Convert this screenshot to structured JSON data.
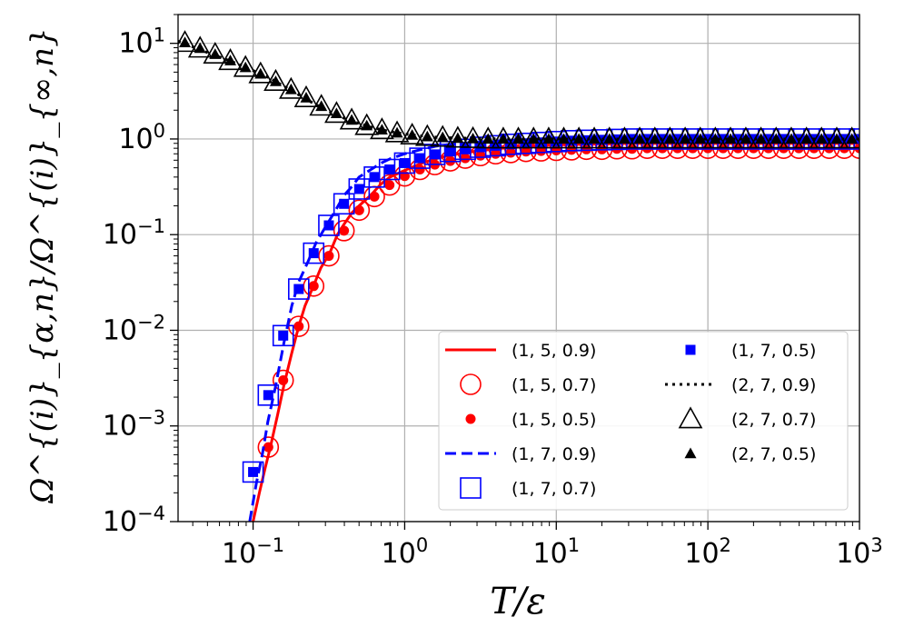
{
  "chart_data": {
    "type": "line",
    "xscale": "log",
    "yscale": "log",
    "xlim": [
      0.032,
      1000
    ],
    "ylim": [
      0.0001,
      20
    ],
    "xlabel": "T/ε",
    "ylabel": "Ω^{(i)}_{α,n}/Ω^{(i)}_{∞,n}",
    "grid": true,
    "legend_location": "lower-right",
    "x_ticks": [
      {
        "value": 0.1,
        "mant": "10",
        "exp": "−1"
      },
      {
        "value": 1,
        "mant": "10",
        "exp": "0"
      },
      {
        "value": 10,
        "mant": "10",
        "exp": "1"
      },
      {
        "value": 100,
        "mant": "10",
        "exp": "2"
      },
      {
        "value": 1000,
        "mant": "10",
        "exp": "3"
      }
    ],
    "y_ticks": [
      {
        "value": 0.0001,
        "mant": "10",
        "exp": "−4"
      },
      {
        "value": 0.001,
        "mant": "10",
        "exp": "−3"
      },
      {
        "value": 0.01,
        "mant": "10",
        "exp": "−2"
      },
      {
        "value": 0.1,
        "mant": "10",
        "exp": "−1"
      },
      {
        "value": 1,
        "mant": "10",
        "exp": "0"
      },
      {
        "value": 10,
        "mant": "10",
        "exp": "1"
      }
    ],
    "series": [
      {
        "name": "(1, 5, 0.9)",
        "style": "line",
        "dash": "solid",
        "color": "#ff0000",
        "x": [
          0.1,
          0.11,
          0.12,
          0.13,
          0.145,
          0.16,
          0.18,
          0.2,
          0.22,
          0.25,
          0.28,
          0.32,
          0.36,
          0.4,
          0.45,
          0.5,
          0.6,
          0.7,
          0.8,
          1.0,
          1.3,
          1.6,
          2,
          3,
          5,
          10,
          30,
          100,
          1000
        ],
        "y": [
          0.0001,
          0.0002,
          0.00036,
          0.0006,
          0.0013,
          0.0027,
          0.0058,
          0.011,
          0.018,
          0.029,
          0.045,
          0.064,
          0.1,
          0.13,
          0.17,
          0.2,
          0.26,
          0.34,
          0.4,
          0.47,
          0.56,
          0.62,
          0.68,
          0.75,
          0.82,
          0.87,
          0.9,
          0.9,
          0.9
        ]
      },
      {
        "name": "(1, 5, 0.7)",
        "style": "marker",
        "marker": "circle-open",
        "color": "#ff0000",
        "x": [
          0.126,
          0.158,
          0.2,
          0.251,
          0.316,
          0.398,
          0.501,
          0.631,
          0.794,
          1.0,
          1.26,
          1.58,
          2.0,
          2.51,
          3.16,
          3.98,
          5.01,
          6.31,
          7.94,
          10,
          12.6,
          15.8,
          20,
          25.1,
          31.6,
          39.8,
          50.1,
          63.1,
          79.4,
          100,
          126,
          158,
          200,
          251,
          316,
          398,
          501,
          631,
          794,
          1000
        ],
        "y": [
          0.0006,
          0.003,
          0.011,
          0.029,
          0.06,
          0.11,
          0.18,
          0.25,
          0.33,
          0.41,
          0.48,
          0.54,
          0.59,
          0.63,
          0.67,
          0.7,
          0.72,
          0.74,
          0.75,
          0.76,
          0.77,
          0.78,
          0.78,
          0.79,
          0.79,
          0.8,
          0.8,
          0.8,
          0.8,
          0.8,
          0.8,
          0.8,
          0.8,
          0.8,
          0.8,
          0.8,
          0.8,
          0.8,
          0.8,
          0.8
        ]
      },
      {
        "name": "(1, 5, 0.5)",
        "style": "marker",
        "marker": "circle-filled",
        "color": "#ff0000",
        "x": [
          0.126,
          0.158,
          0.2,
          0.251,
          0.316,
          0.398,
          0.501,
          0.631,
          0.794,
          1.0,
          1.26,
          1.58,
          2.0,
          2.51,
          3.16,
          3.98,
          5.01,
          6.31,
          7.94,
          10,
          12.6,
          15.8,
          20,
          25.1,
          31.6,
          39.8,
          50.1,
          63.1,
          79.4,
          100,
          126,
          158,
          200,
          251,
          316,
          398,
          501,
          631,
          794,
          1000
        ],
        "y": [
          0.0006,
          0.003,
          0.011,
          0.029,
          0.06,
          0.11,
          0.18,
          0.25,
          0.33,
          0.41,
          0.48,
          0.54,
          0.59,
          0.63,
          0.67,
          0.7,
          0.72,
          0.74,
          0.75,
          0.76,
          0.77,
          0.78,
          0.78,
          0.79,
          0.79,
          0.8,
          0.8,
          0.8,
          0.8,
          0.8,
          0.8,
          0.8,
          0.8,
          0.8,
          0.8,
          0.8,
          0.8,
          0.8,
          0.8,
          0.8
        ]
      },
      {
        "name": "(1, 7, 0.9)",
        "style": "line",
        "dash": "dashed",
        "color": "#0000ff",
        "x": [
          0.095,
          0.105,
          0.115,
          0.125,
          0.14,
          0.16,
          0.18,
          0.2,
          0.23,
          0.26,
          0.3,
          0.35,
          0.4,
          0.45,
          0.5,
          0.6,
          0.7,
          0.8,
          1.0,
          1.3,
          1.6,
          2,
          3,
          5,
          10,
          30,
          100,
          1000
        ],
        "y": [
          0.0001,
          0.00025,
          0.0005,
          0.0011,
          0.0025,
          0.0075,
          0.018,
          0.032,
          0.052,
          0.082,
          0.12,
          0.18,
          0.26,
          0.32,
          0.4,
          0.48,
          0.56,
          0.62,
          0.7,
          0.78,
          0.84,
          0.88,
          0.93,
          0.97,
          1.0,
          1.0,
          1.0,
          1.0
        ]
      },
      {
        "name": "(1, 7, 0.7)",
        "style": "marker",
        "marker": "square-open",
        "color": "#0000ff",
        "x": [
          0.1,
          0.126,
          0.158,
          0.2,
          0.251,
          0.316,
          0.398,
          0.501,
          0.631,
          0.794,
          1.0,
          1.26,
          1.58,
          2.0,
          2.51,
          3.16,
          3.98,
          5.01,
          6.31,
          7.94,
          10,
          12.6,
          15.8,
          20,
          25.1,
          31.6,
          39.8,
          50.1,
          63.1,
          79.4,
          100,
          126,
          158,
          200,
          251,
          316,
          398,
          501,
          631,
          794,
          1000
        ],
        "y": [
          0.00033,
          0.0021,
          0.0088,
          0.027,
          0.064,
          0.125,
          0.21,
          0.3,
          0.4,
          0.48,
          0.56,
          0.63,
          0.69,
          0.74,
          0.78,
          0.82,
          0.85,
          0.88,
          0.9,
          0.92,
          0.94,
          0.96,
          0.97,
          0.98,
          0.99,
          1.0,
          1.0,
          1.0,
          1.0,
          1.0,
          1.0,
          1.0,
          1.0,
          1.0,
          1.0,
          1.0,
          1.0,
          1.0,
          1.0,
          1.0,
          1.0
        ]
      },
      {
        "name": "(1, 7, 0.5)",
        "style": "marker",
        "marker": "square-filled",
        "color": "#0000ff",
        "x": [
          0.1,
          0.126,
          0.158,
          0.2,
          0.251,
          0.316,
          0.398,
          0.501,
          0.631,
          0.794,
          1.0,
          1.26,
          1.58,
          2.0,
          2.51,
          3.16,
          3.98,
          5.01,
          6.31,
          7.94,
          10,
          12.6,
          15.8,
          20,
          25.1,
          31.6,
          39.8,
          50.1,
          63.1,
          79.4,
          100,
          126,
          158,
          200,
          251,
          316,
          398,
          501,
          631,
          794,
          1000
        ],
        "y": [
          0.00033,
          0.0021,
          0.0088,
          0.027,
          0.064,
          0.125,
          0.21,
          0.3,
          0.4,
          0.48,
          0.56,
          0.63,
          0.69,
          0.74,
          0.78,
          0.82,
          0.85,
          0.88,
          0.9,
          0.92,
          0.94,
          0.96,
          0.97,
          0.98,
          0.99,
          1.0,
          1.0,
          1.0,
          1.0,
          1.0,
          1.0,
          1.0,
          1.0,
          1.0,
          1.0,
          1.0,
          1.0,
          1.0,
          1.0,
          1.0,
          1.0
        ]
      },
      {
        "name": "(2, 7, 0.9)",
        "style": "line",
        "dash": "dotted",
        "color": "#000000",
        "x": [
          0.032,
          0.04,
          0.05,
          0.063,
          0.079,
          0.1,
          0.126,
          0.158,
          0.2,
          0.251,
          0.316,
          0.398,
          0.501,
          0.631,
          0.794,
          1.0,
          1.26,
          1.58,
          2.0,
          2.51,
          3.16,
          5.01,
          10,
          100,
          1000
        ],
        "y": [
          10.5,
          9.2,
          8.0,
          7.0,
          6.1,
          5.2,
          4.4,
          3.6,
          2.9,
          2.35,
          1.95,
          1.65,
          1.45,
          1.3,
          1.2,
          1.13,
          1.08,
          1.05,
          1.03,
          1.02,
          1.01,
          1.0,
          1.0,
          1.0,
          1.0
        ]
      },
      {
        "name": "(2, 7, 0.7)",
        "style": "marker",
        "marker": "triangle-open",
        "color": "#000000",
        "x": [
          0.0355,
          0.0447,
          0.0562,
          0.0708,
          0.0891,
          0.112,
          0.141,
          0.178,
          0.224,
          0.282,
          0.355,
          0.447,
          0.562,
          0.708,
          0.891,
          1.12,
          1.41,
          1.78,
          2.24,
          2.82,
          3.55,
          4.47,
          5.62,
          7.08,
          8.91,
          11.2,
          14.1,
          17.8,
          22.4,
          28.2,
          35.5,
          44.7,
          56.2,
          70.8,
          89.1,
          112,
          141,
          178,
          224,
          282,
          355,
          447,
          562,
          708,
          891
        ],
        "y": [
          10.2,
          8.9,
          7.7,
          6.6,
          5.6,
          4.8,
          4.0,
          3.3,
          2.7,
          2.2,
          1.85,
          1.58,
          1.38,
          1.25,
          1.16,
          1.1,
          1.06,
          1.04,
          1.02,
          1.01,
          1.0,
          1.0,
          1.0,
          1.0,
          1.0,
          1.0,
          1.0,
          1.0,
          1.0,
          1.0,
          1.0,
          1.0,
          1.0,
          1.0,
          1.0,
          1.0,
          1.0,
          1.0,
          1.0,
          1.0,
          1.0,
          1.0,
          1.0,
          1.0,
          1.0
        ]
      },
      {
        "name": "(2, 7, 0.5)",
        "style": "marker",
        "marker": "triangle-filled",
        "color": "#000000",
        "x": [
          0.0355,
          0.0447,
          0.0562,
          0.0708,
          0.0891,
          0.112,
          0.141,
          0.178,
          0.224,
          0.282,
          0.355,
          0.447,
          0.562,
          0.708,
          0.891,
          1.12,
          1.41,
          1.78,
          2.24,
          2.82,
          3.55,
          4.47,
          5.62,
          7.08,
          8.91,
          11.2,
          14.1,
          17.8,
          22.4,
          28.2,
          35.5,
          44.7,
          56.2,
          70.8,
          89.1,
          112,
          141,
          178,
          224,
          282,
          355,
          447,
          562,
          708,
          891
        ],
        "y": [
          10.2,
          8.9,
          7.7,
          6.6,
          5.6,
          4.8,
          4.0,
          3.3,
          2.7,
          2.2,
          1.85,
          1.58,
          1.38,
          1.25,
          1.16,
          1.1,
          1.06,
          1.04,
          1.02,
          1.01,
          1.0,
          1.0,
          1.0,
          1.0,
          1.0,
          1.0,
          1.0,
          1.0,
          1.0,
          1.0,
          1.0,
          1.0,
          1.0,
          1.0,
          1.0,
          1.0,
          1.0,
          1.0,
          1.0,
          1.0,
          1.0,
          1.0,
          1.0,
          1.0,
          1.0
        ]
      }
    ]
  }
}
